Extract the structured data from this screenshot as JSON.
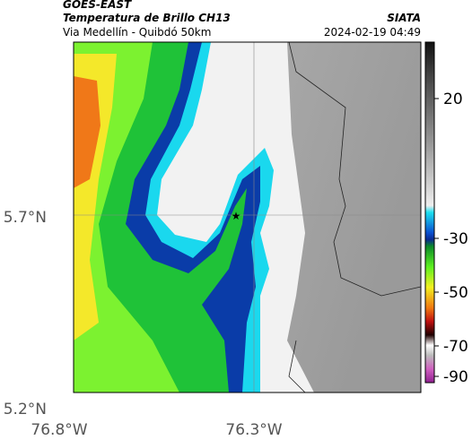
{
  "header": {
    "source": "GOES-EAST",
    "title": "Temperatura de Brillo CH13",
    "subtitle": "Via Medellín - Quibdó 50km",
    "brand": "SIATA",
    "datetime": "2024-02-19 04:49"
  },
  "map": {
    "lat_ticks": [
      "5.7°N",
      "5.2°N"
    ],
    "lon_ticks": [
      "76.8°W",
      "76.3°W"
    ]
  },
  "colorbar": {
    "ticks": [
      "20",
      "-30",
      "-50",
      "-70",
      "-90"
    ]
  }
}
